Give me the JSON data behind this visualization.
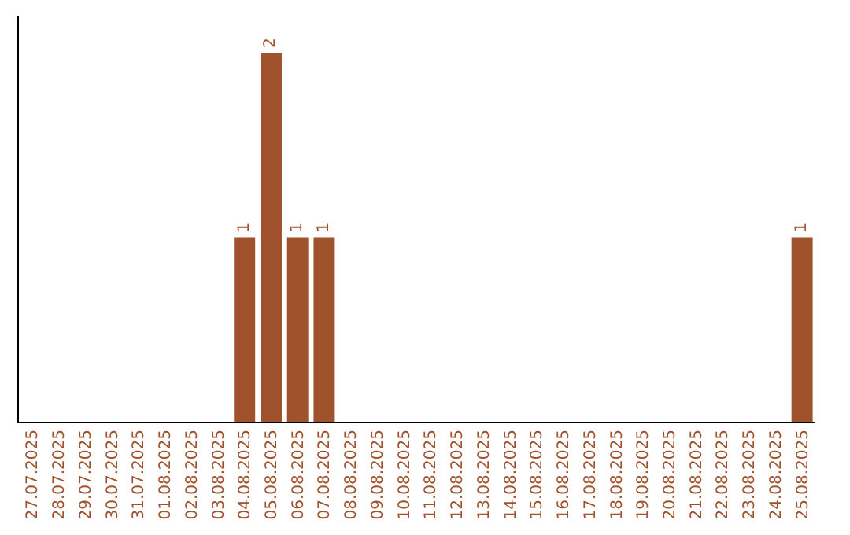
{
  "chart_data": {
    "type": "bar",
    "categories": [
      "27.07.2025",
      "28.07.2025",
      "29.07.2025",
      "30.07.2025",
      "31.07.2025",
      "01.08.2025",
      "02.08.2025",
      "03.08.2025",
      "04.08.2025",
      "05.08.2025",
      "06.08.2025",
      "07.08.2025",
      "08.08.2025",
      "09.08.2025",
      "10.08.2025",
      "11.08.2025",
      "12.08.2025",
      "13.08.2025",
      "14.08.2025",
      "15.08.2025",
      "16.08.2025",
      "17.08.2025",
      "18.08.2025",
      "19.08.2025",
      "20.08.2025",
      "21.08.2025",
      "22.08.2025",
      "23.08.2025",
      "24.08.2025",
      "25.08.2025"
    ],
    "values": [
      0,
      0,
      0,
      0,
      0,
      0,
      0,
      0,
      1,
      2,
      1,
      1,
      0,
      0,
      0,
      0,
      0,
      0,
      0,
      0,
      0,
      0,
      0,
      0,
      0,
      0,
      0,
      0,
      0,
      1
    ],
    "value_labels": [
      null,
      null,
      null,
      null,
      null,
      null,
      null,
      null,
      "1",
      "2",
      "1",
      "1",
      null,
      null,
      null,
      null,
      null,
      null,
      null,
      null,
      null,
      null,
      null,
      null,
      null,
      null,
      null,
      null,
      null,
      "1"
    ],
    "color": "#a0522d",
    "grid": false,
    "tick_labels": "x"
  }
}
